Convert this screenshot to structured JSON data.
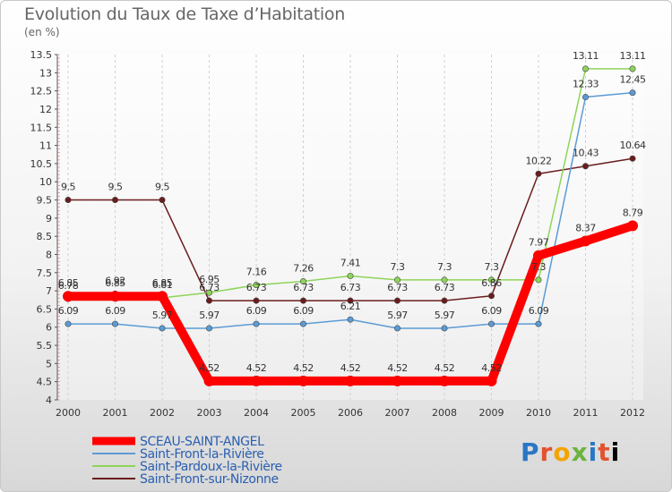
{
  "chart_data": {
    "type": "line",
    "title": "Evolution du Taux de Taxe d’Habitation",
    "subtitle": "(en %)",
    "x": [
      "2000",
      "2001",
      "2002",
      "2003",
      "2004",
      "2005",
      "2006",
      "2007",
      "2008",
      "2009",
      "2010",
      "2011",
      "2012"
    ],
    "ylim": [
      4,
      13.5
    ],
    "yticks": [
      "4",
      "4.5",
      "5",
      "5.5",
      "6",
      "6.5",
      "7",
      "7.5",
      "8",
      "8.5",
      "9",
      "9.5",
      "10",
      "10.5",
      "11",
      "11.5",
      "12",
      "12.5",
      "13",
      "13.5"
    ],
    "grid": "dashed vertical",
    "legend_position": "bottom-left",
    "series": [
      {
        "name": "SCEAU-SAINT-ANGEL",
        "color": "#ff0000",
        "width": 10,
        "values": [
          6.85,
          6.85,
          6.85,
          4.52,
          4.52,
          4.52,
          4.52,
          4.52,
          4.52,
          4.52,
          7.97,
          8.37,
          8.79
        ],
        "labels": [
          "6.85",
          "6.85",
          "6.85",
          "4.52",
          "4.52",
          "4.52",
          "4.52",
          "4.52",
          "4.52",
          "4.52",
          "7.97",
          "8.37",
          "8.79"
        ]
      },
      {
        "name": "Saint-Front-la-Rivière",
        "color": "#5b9bd5",
        "width": 1.5,
        "values": [
          6.09,
          6.09,
          5.97,
          5.97,
          6.09,
          6.09,
          6.21,
          5.97,
          5.97,
          6.09,
          6.09,
          12.33,
          12.45
        ],
        "labels": [
          "6.09",
          "6.09",
          "5.97",
          "5.97",
          "6.09",
          "6.09",
          "6.21",
          "5.97",
          "5.97",
          "6.09",
          "6.09",
          "12.33",
          "12.45"
        ]
      },
      {
        "name": "Saint-Pardoux-la-Rivière",
        "color": "#8ed45a",
        "width": 1.5,
        "values": [
          6.78,
          6.92,
          6.81,
          6.95,
          7.16,
          7.26,
          7.41,
          7.3,
          7.3,
          7.3,
          7.3,
          13.11,
          13.11
        ],
        "labels": [
          "6.78",
          "6.92",
          "6.81",
          "6.95",
          "7.16",
          "7.26",
          "7.41",
          "7.3",
          "7.3",
          "7.3",
          "7.3",
          "13.11",
          "13.11"
        ]
      },
      {
        "name": "Saint-Front-sur-Nizonne",
        "color": "#6b1c1c",
        "width": 1.5,
        "values": [
          9.5,
          9.5,
          9.5,
          6.73,
          6.73,
          6.73,
          6.73,
          6.73,
          6.73,
          6.86,
          10.22,
          10.43,
          10.64
        ],
        "labels": [
          "9.5",
          "9.5",
          "9.5",
          "6.73",
          "6.73",
          "6.73",
          "6.73",
          "6.73",
          "6.73",
          "6.86",
          "10.22",
          "10.43",
          "10.64"
        ]
      }
    ]
  },
  "logo": [
    "P",
    "r",
    "o",
    "x",
    "i",
    "t",
    "i"
  ]
}
